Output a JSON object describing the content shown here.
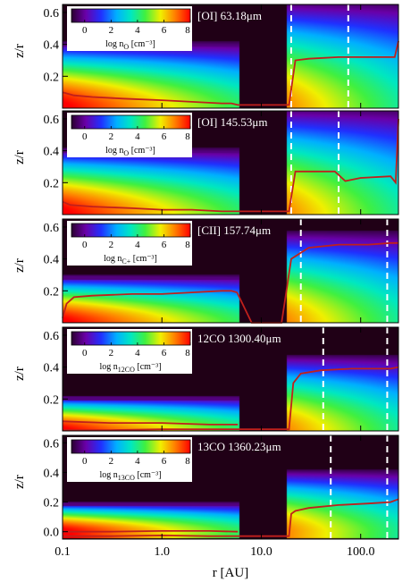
{
  "chart_data": {
    "type": "heatmap",
    "xlabel": "r [AU]",
    "ylabel": "z/r",
    "xscale": "log",
    "xlim": [
      0.1,
      240
    ],
    "x_ticks": [
      "0.1",
      "1.0",
      "10.0",
      "100.0"
    ],
    "x_tick_values": [
      0.1,
      1.0,
      10.0,
      100.0
    ],
    "y_ticks_top": [
      "0.2",
      "0.4",
      "0.6"
    ],
    "y_tick_values_top": [
      0.2,
      0.4,
      0.6
    ],
    "y_ticks_bottom": [
      "0.0",
      "0.2",
      "0.4",
      "0.6"
    ],
    "y_tick_values_bottom": [
      0.0,
      0.2,
      0.4,
      0.6
    ],
    "ylim_top": [
      0.0,
      0.65
    ],
    "ylim_bottom": [
      -0.05,
      0.65
    ],
    "gap": [
      6.0,
      18.0
    ],
    "colorbar": {
      "ticks": [
        "0",
        "2",
        "4",
        "6",
        "8"
      ],
      "tick_values": [
        0,
        2,
        4,
        6,
        8
      ],
      "range": [
        -1,
        8
      ]
    },
    "panels": [
      {
        "label": "[OI] 63.18μm",
        "cb_label_base": "log n",
        "cb_label_sub": "O",
        "cb_label_unit": "[cm⁻³]",
        "inner_height": 0.42,
        "outer_height": 0.68,
        "dashed_r": [
          20.0,
          75.0
        ],
        "emission_r": [
          0.1,
          0.13,
          0.2,
          0.4,
          1.0,
          2.0,
          4.0,
          5.0,
          5.8,
          19.0,
          22.0,
          30.0,
          60.0,
          150.0,
          220.0,
          240.0
        ],
        "emission_z": [
          0.1,
          0.08,
          0.07,
          0.06,
          0.05,
          0.04,
          0.03,
          0.03,
          0.02,
          0.02,
          0.3,
          0.31,
          0.32,
          0.32,
          0.32,
          0.42
        ]
      },
      {
        "label": "[OI] 145.53μm",
        "cb_label_base": "log n",
        "cb_label_sub": "O",
        "cb_label_unit": "[cm⁻³]",
        "inner_height": 0.42,
        "outer_height": 0.68,
        "dashed_r": [
          20.0,
          60.0
        ],
        "emission_r": [
          0.1,
          0.12,
          0.2,
          0.5,
          1.0,
          2.0,
          4.0,
          5.0,
          5.8,
          19.0,
          22.0,
          40.0,
          55.0,
          70.0,
          100.0,
          200.0,
          225.0,
          240.0
        ],
        "emission_z": [
          0.08,
          0.06,
          0.05,
          0.04,
          0.03,
          0.03,
          0.02,
          0.02,
          0.02,
          0.02,
          0.27,
          0.27,
          0.27,
          0.21,
          0.23,
          0.24,
          0.2,
          0.6
        ]
      },
      {
        "label": "[CII] 157.74μm",
        "cb_label_base": "log n",
        "cb_label_sub": "C+",
        "cb_label_unit": "[cm⁻³]",
        "inner_height": 0.3,
        "outer_height": 0.58,
        "dashed_r": [
          25.0,
          185.0
        ],
        "emission_r": [
          0.1,
          0.11,
          0.13,
          0.2,
          0.5,
          1.0,
          2.0,
          4.0,
          5.0,
          5.7,
          8.0,
          16.0,
          20.0,
          30.0,
          60.0,
          120.0,
          200.0,
          240.0
        ],
        "emission_z": [
          0.03,
          0.12,
          0.16,
          0.17,
          0.18,
          0.18,
          0.19,
          0.2,
          0.2,
          0.19,
          -0.05,
          -0.05,
          0.4,
          0.47,
          0.49,
          0.49,
          0.5,
          0.5
        ]
      },
      {
        "label": "12CO 1300.40μm",
        "cb_label_base": "log n",
        "cb_label_sub": "12CO",
        "cb_label_unit": "[cm⁻³]",
        "inner_height": 0.22,
        "outer_height": 0.48,
        "dashed_r": [
          42.0,
          185.0
        ],
        "emission_r": [
          0.1,
          0.3,
          1.0,
          3.0,
          5.8,
          19.0,
          21.0,
          25.0,
          40.0,
          80.0,
          200.0,
          240.0
        ],
        "emission_z": [
          0.005,
          0.005,
          0.01,
          0.01,
          0.01,
          0.01,
          0.3,
          0.36,
          0.38,
          0.39,
          0.39,
          0.4
        ],
        "emission_r2": [
          0.1,
          0.3,
          1.0,
          3.0,
          5.8
        ],
        "emission_z2": [
          0.06,
          0.05,
          0.05,
          0.04,
          0.04
        ]
      },
      {
        "label": "13CO 1360.23μm",
        "cb_label_base": "log n",
        "cb_label_sub": "13CO",
        "cb_label_unit": "[cm⁻³]",
        "inner_height": 0.2,
        "outer_height": 0.42,
        "dashed_r": [
          50.0,
          185.0
        ],
        "emission_r": [
          0.1,
          0.3,
          1.0,
          3.0,
          5.8,
          19.0,
          20.0,
          22.0,
          30.0,
          60.0,
          120.0,
          200.0,
          240.0
        ],
        "emission_z": [
          -0.03,
          -0.03,
          -0.025,
          -0.03,
          -0.03,
          -0.03,
          0.12,
          0.14,
          0.16,
          0.18,
          0.19,
          0.2,
          0.22
        ],
        "emission_r2": [
          0.1,
          0.3,
          1.0,
          3.0,
          5.8
        ],
        "emission_z2": [
          0.0,
          0.0,
          0.005,
          0.005,
          0.0
        ]
      }
    ]
  }
}
